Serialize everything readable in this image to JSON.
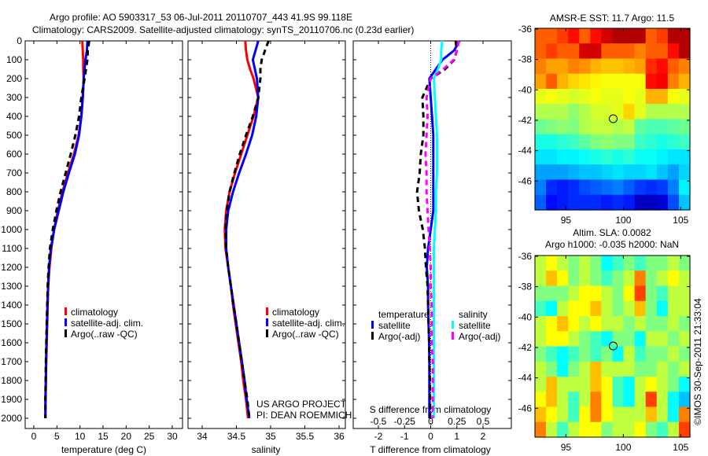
{
  "title_line1": "Argo profile: AO 5903317_53 06-Jul-2011 20110707_443 41.9S 99.118E",
  "title_line2": "Climatology: CARS2009. Satellite-adjusted climatology: synTS_20110706.nc (0.23d earlier)",
  "colors": {
    "climatology": "#ff0000",
    "satellite": "#0000ff",
    "argo": "#000000",
    "sal_sat": "#00ffff",
    "sal_argo": "#ff00ff"
  },
  "chart_data": [
    {
      "type": "line",
      "title": "",
      "xlabel": "temperature (deg C)",
      "ylabel": "",
      "xlim": [
        -2,
        31.5
      ],
      "ylim": [
        0,
        2055
      ],
      "y_reversed": true,
      "xticks": [
        "0",
        "5",
        "10",
        "15",
        "20",
        "25",
        "30"
      ],
      "xtick_values": [
        0,
        5,
        10,
        15,
        20,
        25,
        30
      ],
      "yticks": [
        "0",
        "100",
        "200",
        "300",
        "400",
        "500",
        "600",
        "700",
        "800",
        "900",
        "1000",
        "1100",
        "1200",
        "1300",
        "1400",
        "1500",
        "1600",
        "1700",
        "1800",
        "1900",
        "2000"
      ],
      "depth": [
        0,
        50,
        100,
        150,
        200,
        300,
        400,
        500,
        600,
        700,
        800,
        900,
        1000,
        1100,
        1200,
        1300,
        1400,
        1500,
        1600,
        1700,
        1800,
        1900,
        2000
      ],
      "series": [
        {
          "name": "climatology",
          "color": "#ff0000",
          "dash": false,
          "values": [
            10.5,
            10.6,
            10.7,
            10.7,
            10.8,
            10.6,
            10.3,
            9.7,
            8.7,
            7.4,
            6.2,
            5.2,
            4.4,
            3.8,
            3.4,
            3.1,
            3.0,
            2.9,
            2.8,
            2.7,
            2.6,
            2.55,
            2.5
          ]
        },
        {
          "name": "satellite-adj. clim.",
          "color": "#0000ff",
          "dash": false,
          "values": [
            11.6,
            11.5,
            11.2,
            11.0,
            10.8,
            10.6,
            10.3,
            9.8,
            8.9,
            7.6,
            6.4,
            5.4,
            4.4,
            3.7,
            3.3,
            3.1,
            2.95,
            2.85,
            2.75,
            2.65,
            2.6,
            2.5,
            2.5
          ]
        },
        {
          "name": "Argo(..raw -QC)",
          "color": "#000000",
          "dash": true,
          "values": [
            12.0,
            11.7,
            11.6,
            11.3,
            11.0,
            10.3,
            9.8,
            9.0,
            8.0,
            6.9,
            5.8,
            4.9,
            4.1,
            3.5,
            3.2,
            3.0,
            2.9,
            2.8,
            2.7,
            2.6,
            2.55,
            2.5,
            2.5
          ]
        }
      ],
      "legend": "center-left"
    },
    {
      "type": "line",
      "title": "",
      "xlabel": "salinity",
      "ylabel": "",
      "xlim": [
        33.79,
        36.1
      ],
      "ylim": [
        0,
        2055
      ],
      "y_reversed": true,
      "xticks": [
        "34",
        "34.5",
        "35",
        "35.5",
        "36"
      ],
      "xtick_values": [
        34,
        34.5,
        35,
        35.5,
        36
      ],
      "depth": [
        0,
        50,
        100,
        150,
        200,
        300,
        400,
        500,
        600,
        700,
        800,
        900,
        1000,
        1100,
        1200,
        1300,
        1400,
        1500,
        1600,
        1700,
        1800,
        1900,
        2000
      ],
      "series": [
        {
          "name": "climatology",
          "color": "#ff0000",
          "dash": false,
          "values": [
            34.63,
            34.64,
            34.66,
            34.7,
            34.75,
            34.82,
            34.75,
            34.66,
            34.57,
            34.48,
            34.4,
            34.35,
            34.33,
            34.34,
            34.38,
            34.42,
            34.45,
            34.49,
            34.53,
            34.57,
            34.6,
            34.64,
            34.67
          ]
        },
        {
          "name": "satellite-adj. clim.",
          "color": "#0000ff",
          "dash": false,
          "values": [
            34.82,
            34.78,
            34.74,
            34.77,
            34.8,
            34.82,
            34.79,
            34.73,
            34.64,
            34.54,
            34.45,
            34.38,
            34.35,
            34.35,
            34.38,
            34.42,
            34.46,
            34.5,
            34.54,
            34.58,
            34.62,
            34.65,
            34.69
          ]
        },
        {
          "name": "Argo(..raw -QC)",
          "color": "#000000",
          "dash": true,
          "values": [
            34.97,
            34.92,
            34.87,
            34.85,
            34.85,
            34.82,
            34.74,
            34.64,
            34.55,
            34.47,
            34.4,
            34.36,
            34.34,
            34.35,
            34.38,
            34.42,
            34.46,
            34.5,
            34.54,
            34.58,
            34.62,
            34.66,
            34.69
          ]
        }
      ],
      "legend": "center-right",
      "annotation": [
        "US ARGO PROJECT",
        "PI: DEAN ROEMMICH"
      ]
    },
    {
      "type": "line",
      "title": "",
      "xlabel": "T difference from climatology",
      "xlabel2": "S difference from climatology",
      "xlim": [
        -3,
        3.05
      ],
      "ylim": [
        0,
        2055
      ],
      "y_reversed": true,
      "xticks": [
        "-2",
        "-1",
        "0",
        "1",
        "2"
      ],
      "xtick_values": [
        -2,
        -1,
        0,
        1,
        2
      ],
      "xticks2": [
        "-0.5",
        "-0.25",
        "0",
        "0.25",
        "0.5"
      ],
      "xtick2_values": [
        -0.5,
        -0.25,
        0,
        0.25,
        0.5
      ],
      "depth": [
        0,
        50,
        100,
        150,
        200,
        300,
        400,
        500,
        600,
        700,
        800,
        900,
        1000,
        1100,
        1200,
        1300,
        1400,
        1500,
        1600,
        1700,
        1800,
        1900,
        2000
      ],
      "legend_headers": [
        "temperature",
        "salinity"
      ],
      "series": [
        {
          "name": "satellite",
          "group": "temperature",
          "axis": "T",
          "color": "#0000ff",
          "dash": false,
          "values": [
            1.1,
            0.9,
            0.45,
            0.2,
            -0.05,
            0,
            0.05,
            0.1,
            0.1,
            0.1,
            0.1,
            0.1,
            0,
            -0.1,
            -0.15,
            -0.1,
            -0.1,
            -0.08,
            -0.06,
            -0.05,
            -0.05,
            -0.05,
            -0.05
          ]
        },
        {
          "name": "Argo(-adj)",
          "group": "temperature",
          "axis": "T",
          "color": "#000000",
          "dash": true,
          "values": [
            0.95,
            1.0,
            0.9,
            0.55,
            0,
            -0.32,
            -0.28,
            -0.28,
            -0.38,
            -0.42,
            -0.52,
            -0.45,
            -0.3,
            -0.22,
            -0.18,
            -0.12,
            -0.1,
            -0.08,
            -0.06,
            -0.05,
            -0.03,
            -0.02,
            -0.02
          ]
        },
        {
          "name": "satellite",
          "group": "salinity",
          "axis": "S",
          "color": "#00ffff",
          "dash": false,
          "values": [
            0.11,
            0.1,
            0.1,
            0.07,
            0.03,
            0.04,
            0.05,
            0.06,
            0.06,
            0.06,
            0.05,
            0.05,
            0.04,
            0.03,
            0.03,
            0.03,
            0.03,
            0.03,
            0.03,
            0.03,
            0.03,
            0.03,
            0.03
          ]
        },
        {
          "name": "Argo(-adj)",
          "group": "salinity",
          "axis": "S",
          "color": "#ff00ff",
          "dash": true,
          "values": [
            0.27,
            0.25,
            0.22,
            0.12,
            0,
            -0.04,
            -0.03,
            -0.04,
            -0.05,
            -0.04,
            -0.04,
            -0.03,
            -0.02,
            -0.01,
            0,
            0,
            0.01,
            0.01,
            0.01,
            0.02,
            0.02,
            0.02,
            0.02
          ]
        }
      ],
      "legend": "center"
    },
    {
      "type": "heatmap",
      "title": "AMSR-E SST: 11.7 Argo: 11.5",
      "xlim": [
        92.3,
        105.8
      ],
      "ylim": [
        -47.9,
        -35.95
      ],
      "xticks": [
        "95",
        "100",
        "105"
      ],
      "xtick_values": [
        95,
        100,
        105
      ],
      "yticks": [
        "-36",
        "-38",
        "-40",
        "-42",
        "-44",
        "-46"
      ],
      "ytick_values": [
        -36,
        -38,
        -40,
        -42,
        -44,
        -46
      ],
      "clim": [
        8.3,
        14.3
      ],
      "colormap": "jet",
      "marker": {
        "lon": 99.118,
        "lat": -41.9
      },
      "grid": [
        [
          13,
          13,
          13.2,
          13.5,
          13,
          13.5,
          13.8,
          14,
          14,
          14,
          13,
          13.2,
          14,
          14
        ],
        [
          13,
          13.2,
          13,
          13,
          13.8,
          13.8,
          13,
          13,
          13,
          12.8,
          13,
          13,
          13.5,
          14
        ],
        [
          12.8,
          12.6,
          12.6,
          12.8,
          12.7,
          12.5,
          12.4,
          12.4,
          12.5,
          12.6,
          13.3,
          13.5,
          13,
          12.8
        ],
        [
          12.6,
          13,
          12.5,
          12.3,
          12.2,
          12.1,
          12,
          12,
          12,
          12,
          13.5,
          13.6,
          12.8,
          12.5
        ],
        [
          11.9,
          12,
          11.9,
          11.8,
          11.9,
          12,
          11.9,
          11.9,
          12,
          11.9,
          12.5,
          12.5,
          12,
          11.9
        ],
        [
          11.6,
          11.6,
          11.6,
          11.4,
          11.6,
          11.8,
          11.8,
          11.9,
          12.3,
          11.9,
          11.6,
          11.6,
          11.6,
          11.6
        ],
        [
          11.2,
          11.3,
          11.4,
          11.3,
          11.6,
          11.7,
          11.7,
          11.6,
          11.7,
          11.1,
          11,
          11,
          11.1,
          11.2
        ],
        [
          10.7,
          10.7,
          10.8,
          10.9,
          11.1,
          11.3,
          11.4,
          11.3,
          11.3,
          10.9,
          10.8,
          10.7,
          10.8,
          10.9
        ],
        [
          10.4,
          10.4,
          10.5,
          10.5,
          10.6,
          10.7,
          10.8,
          10.7,
          10.8,
          10.6,
          10.6,
          10.5,
          10.4,
          10.4
        ],
        [
          10,
          10,
          10,
          10.1,
          10.2,
          10.2,
          10.3,
          10.4,
          10.3,
          10.3,
          10.4,
          10.2,
          10,
          10.3
        ],
        [
          9.8,
          9.3,
          9.2,
          9.3,
          9.5,
          9.6,
          9.7,
          9.8,
          9.6,
          9.4,
          9.3,
          9.4,
          9.8,
          10.5
        ],
        [
          9.6,
          9.1,
          9.2,
          9.3,
          9.3,
          9.3,
          9.2,
          9.3,
          9.2,
          8.7,
          8.7,
          8.8,
          9.5,
          10.2
        ]
      ]
    },
    {
      "type": "heatmap",
      "title": "Altim. SLA: 0.0082",
      "subtitle": "Argo h1000: -0.035 h2000: NaN",
      "xlim": [
        92.3,
        105.8
      ],
      "ylim": [
        -47.9,
        -35.95
      ],
      "xticks": [
        "95",
        "100",
        "105"
      ],
      "xtick_values": [
        95,
        100,
        105
      ],
      "yticks": [
        "-36",
        "-38",
        "-40",
        "-42",
        "-44",
        "-46"
      ],
      "ytick_values": [
        -36,
        -38,
        -40,
        -42,
        -44,
        -46
      ],
      "clim": [
        -0.4,
        0.4
      ],
      "colormap": "jet",
      "marker": {
        "lon": 99.118,
        "lat": -41.9
      },
      "grid": [
        [
          0.05,
          0.1,
          0.05,
          0,
          0.05,
          0,
          -0.1,
          -0.05,
          0,
          -0.05,
          0,
          0,
          0.05,
          0
        ],
        [
          0.05,
          0.15,
          0.1,
          0,
          0.05,
          0,
          -0.05,
          0,
          0.05,
          0.2,
          0,
          0.05,
          0.1,
          0.05
        ],
        [
          0,
          0,
          0,
          0.05,
          0.1,
          0.1,
          0.05,
          0,
          0.1,
          0.25,
          0,
          -0.05,
          0.05,
          0.05
        ],
        [
          -0.05,
          -0.1,
          0.05,
          0.1,
          0.1,
          0.15,
          0.05,
          0,
          0.05,
          0.15,
          0,
          -0.1,
          0.05,
          0.05
        ],
        [
          0.05,
          0.1,
          0.15,
          0.1,
          0.05,
          0.1,
          0.05,
          0.05,
          0,
          0.05,
          0,
          0,
          0.05,
          0
        ],
        [
          0.05,
          0.1,
          0.1,
          0.05,
          0,
          -0.05,
          -0.1,
          0,
          0,
          -0.1,
          0.05,
          0.05,
          0,
          0.05
        ],
        [
          0,
          -0.05,
          -0.1,
          -0.05,
          0,
          -0.05,
          0,
          -0.1,
          0.05,
          -0.05,
          0,
          0,
          0.05,
          0
        ],
        [
          0.05,
          0,
          -0.1,
          0,
          0.05,
          0.15,
          0.05,
          0.05,
          0.05,
          0,
          0,
          0.05,
          0,
          0.05
        ],
        [
          0.05,
          0.15,
          0.05,
          0.05,
          0.05,
          0.15,
          0.1,
          -0.05,
          -0.1,
          0.05,
          0.1,
          0.05,
          0,
          -0.1
        ],
        [
          0.1,
          0.15,
          0.05,
          -0.05,
          0.05,
          0.2,
          0.1,
          -0.05,
          -0.1,
          0.05,
          0.25,
          0.05,
          -0.1,
          -0.15
        ],
        [
          0.15,
          0.1,
          0.05,
          -0.05,
          0.1,
          0.2,
          0.1,
          0.05,
          0.05,
          0.05,
          0.15,
          0.05,
          -0.1,
          0.2
        ],
        [
          0.2,
          0.05,
          -0.05,
          0.05,
          0.1,
          0.1,
          0,
          0.05,
          0.05,
          0.1,
          0,
          -0.05,
          0.05,
          0.25
        ]
      ]
    }
  ],
  "footer_stamp": "©IMOS 30-Sep-2011 21:33:04"
}
